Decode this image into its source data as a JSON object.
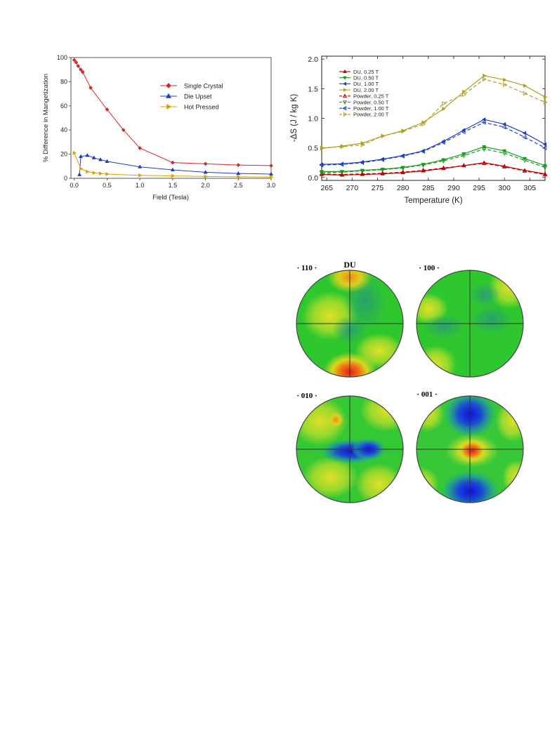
{
  "chart_data": [
    {
      "type": "line",
      "xlabel": "Field (Tesla)",
      "ylabel": "% Difference in Mangetization",
      "xlim": [
        -0.05,
        3.0
      ],
      "ylim": [
        0,
        100
      ],
      "xticks": [
        "0.0",
        "0.5",
        "1.0",
        "1.5",
        "2.0",
        "2.5",
        "3.0"
      ],
      "yticks": [
        "0",
        "20",
        "40",
        "60",
        "80",
        "100"
      ],
      "legend_position": "top-right",
      "series": [
        {
          "name": "Single Crystal",
          "color": "#d62728",
          "marker": "diamond",
          "x": [
            0.0,
            0.03,
            0.06,
            0.1,
            0.13,
            0.25,
            0.5,
            0.75,
            1.0,
            1.5,
            2.0,
            2.5,
            3.0
          ],
          "y": [
            98,
            96,
            93,
            90,
            88,
            75,
            57,
            40,
            25,
            13,
            12,
            11,
            10.5
          ]
        },
        {
          "name": "Die Upset",
          "color": "#1f3fbf",
          "marker": "triangle-up",
          "x": [
            0.08,
            0.1,
            0.2,
            0.3,
            0.4,
            0.5,
            1.0,
            1.5,
            2.0,
            2.5,
            3.0
          ],
          "y": [
            3,
            18,
            19,
            17,
            15.5,
            14,
            9.5,
            7,
            5,
            4,
            3.5
          ]
        },
        {
          "name": "Hot Pressed",
          "color": "#e0a000",
          "marker": "triangle-right",
          "x": [
            0.0,
            0.1,
            0.2,
            0.3,
            0.4,
            0.5,
            1.0,
            1.5,
            2.0,
            2.5,
            3.0
          ],
          "y": [
            21,
            8,
            5.5,
            4.5,
            4,
            3.5,
            2.5,
            2,
            1.5,
            1.2,
            1
          ]
        }
      ]
    },
    {
      "type": "line",
      "xlabel": "Temperature (K)",
      "ylabel": "-ΔS (J / kg K)",
      "xlim": [
        264,
        308
      ],
      "ylim": [
        -0.05,
        2.05
      ],
      "xticks": [
        "265",
        "270",
        "275",
        "280",
        "285",
        "290",
        "295",
        "300",
        "305"
      ],
      "yticks": [
        "0.0",
        "0.5",
        "1.0",
        "1.5",
        "2.0"
      ],
      "legend_position": "top-left",
      "x": [
        264,
        268,
        272,
        276,
        280,
        284,
        288,
        292,
        296,
        300,
        304,
        308
      ],
      "series": [
        {
          "name": "DU, 0.25 T",
          "color": "#c00000",
          "style": "solid",
          "marker": "triangle-up",
          "values": [
            0.05,
            0.04,
            0.05,
            0.06,
            0.08,
            0.11,
            0.15,
            0.2,
            0.25,
            0.19,
            0.12,
            0.06
          ]
        },
        {
          "name": "DU, 0.50 T",
          "color": "#1a9a1a",
          "style": "solid",
          "marker": "triangle-down",
          "values": [
            0.1,
            0.1,
            0.12,
            0.14,
            0.17,
            0.22,
            0.3,
            0.4,
            0.52,
            0.45,
            0.32,
            0.2
          ]
        },
        {
          "name": "DU, 1.00 T",
          "color": "#1f3fbf",
          "style": "solid",
          "marker": "triangle-left",
          "values": [
            0.22,
            0.23,
            0.26,
            0.31,
            0.37,
            0.45,
            0.61,
            0.8,
            0.98,
            0.9,
            0.75,
            0.56
          ]
        },
        {
          "name": "DU, 2.00 T",
          "color": "#b0a020",
          "style": "solid",
          "marker": "triangle-right",
          "values": [
            0.49,
            0.53,
            0.58,
            0.7,
            0.79,
            0.93,
            1.16,
            1.45,
            1.72,
            1.65,
            1.55,
            1.36
          ]
        },
        {
          "name": "Powder, 0.25 T",
          "color": "#c00000",
          "style": "dashed",
          "marker": "open-triangle-up",
          "values": [
            0.06,
            0.05,
            0.06,
            0.07,
            0.09,
            0.12,
            0.16,
            0.2,
            0.24,
            0.18,
            0.11,
            0.05
          ]
        },
        {
          "name": "Powder, 0.50 T",
          "color": "#1a9a1a",
          "style": "dashed",
          "marker": "open-triangle-down",
          "values": [
            0.08,
            0.09,
            0.11,
            0.13,
            0.16,
            0.21,
            0.28,
            0.37,
            0.48,
            0.41,
            0.29,
            0.17
          ]
        },
        {
          "name": "Powder, 1.00 T",
          "color": "#1f3fbf",
          "style": "dashed",
          "marker": "open-triangle-left",
          "values": [
            0.21,
            0.22,
            0.25,
            0.3,
            0.36,
            0.44,
            0.59,
            0.77,
            0.93,
            0.85,
            0.68,
            0.5
          ]
        },
        {
          "name": "Powder, 2.00 T",
          "color": "#b0a020",
          "style": "dashed",
          "marker": "open-triangle-right",
          "values": [
            0.5,
            0.52,
            0.55,
            0.7,
            0.78,
            0.9,
            1.25,
            1.4,
            1.66,
            1.57,
            1.42,
            1.27
          ]
        }
      ]
    }
  ],
  "pole_figures": {
    "group_label": "DU",
    "items": [
      {
        "label": "· 110 ·"
      },
      {
        "label": "· 100 ·"
      },
      {
        "label": "· 010 ·"
      },
      {
        "label": "· 001 ·"
      }
    ]
  }
}
